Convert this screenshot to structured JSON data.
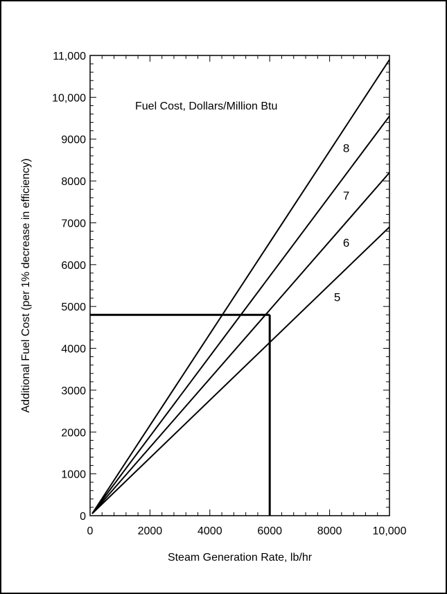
{
  "chart_data": {
    "type": "line",
    "title": "",
    "xlabel": "Steam Generation Rate, lb/hr",
    "ylabel": "Additional Fuel Cost (per 1% decrease in efficiency)",
    "xlim": [
      0,
      10000
    ],
    "ylim": [
      0,
      11000
    ],
    "x_ticks": [
      0,
      2000,
      4000,
      6000,
      8000,
      10000
    ],
    "x_tick_labels": [
      "0",
      "2000",
      "4000",
      "6000",
      "8000",
      "10,000"
    ],
    "y_ticks": [
      0,
      1000,
      2000,
      3000,
      4000,
      5000,
      6000,
      7000,
      8000,
      9000,
      10000,
      11000
    ],
    "y_tick_labels": [
      "0",
      "1000",
      "2000",
      "3000",
      "4000",
      "5000",
      "6000",
      "7000",
      "8000",
      "9000",
      "10,000",
      "11,000"
    ],
    "legend_title": "Fuel Cost, Dollars/Million Btu",
    "grid": false,
    "series": [
      {
        "name": "8",
        "x": [
          0,
          10000
        ],
        "y": [
          0,
          10900
        ]
      },
      {
        "name": "7",
        "x": [
          0,
          10000
        ],
        "y": [
          0,
          9550
        ]
      },
      {
        "name": "6",
        "x": [
          0,
          10000
        ],
        "y": [
          0,
          8200
        ]
      },
      {
        "name": "5",
        "x": [
          0,
          10000
        ],
        "y": [
          0,
          6900
        ]
      }
    ],
    "example_reading": {
      "x": 6000,
      "y": 4800
    }
  }
}
